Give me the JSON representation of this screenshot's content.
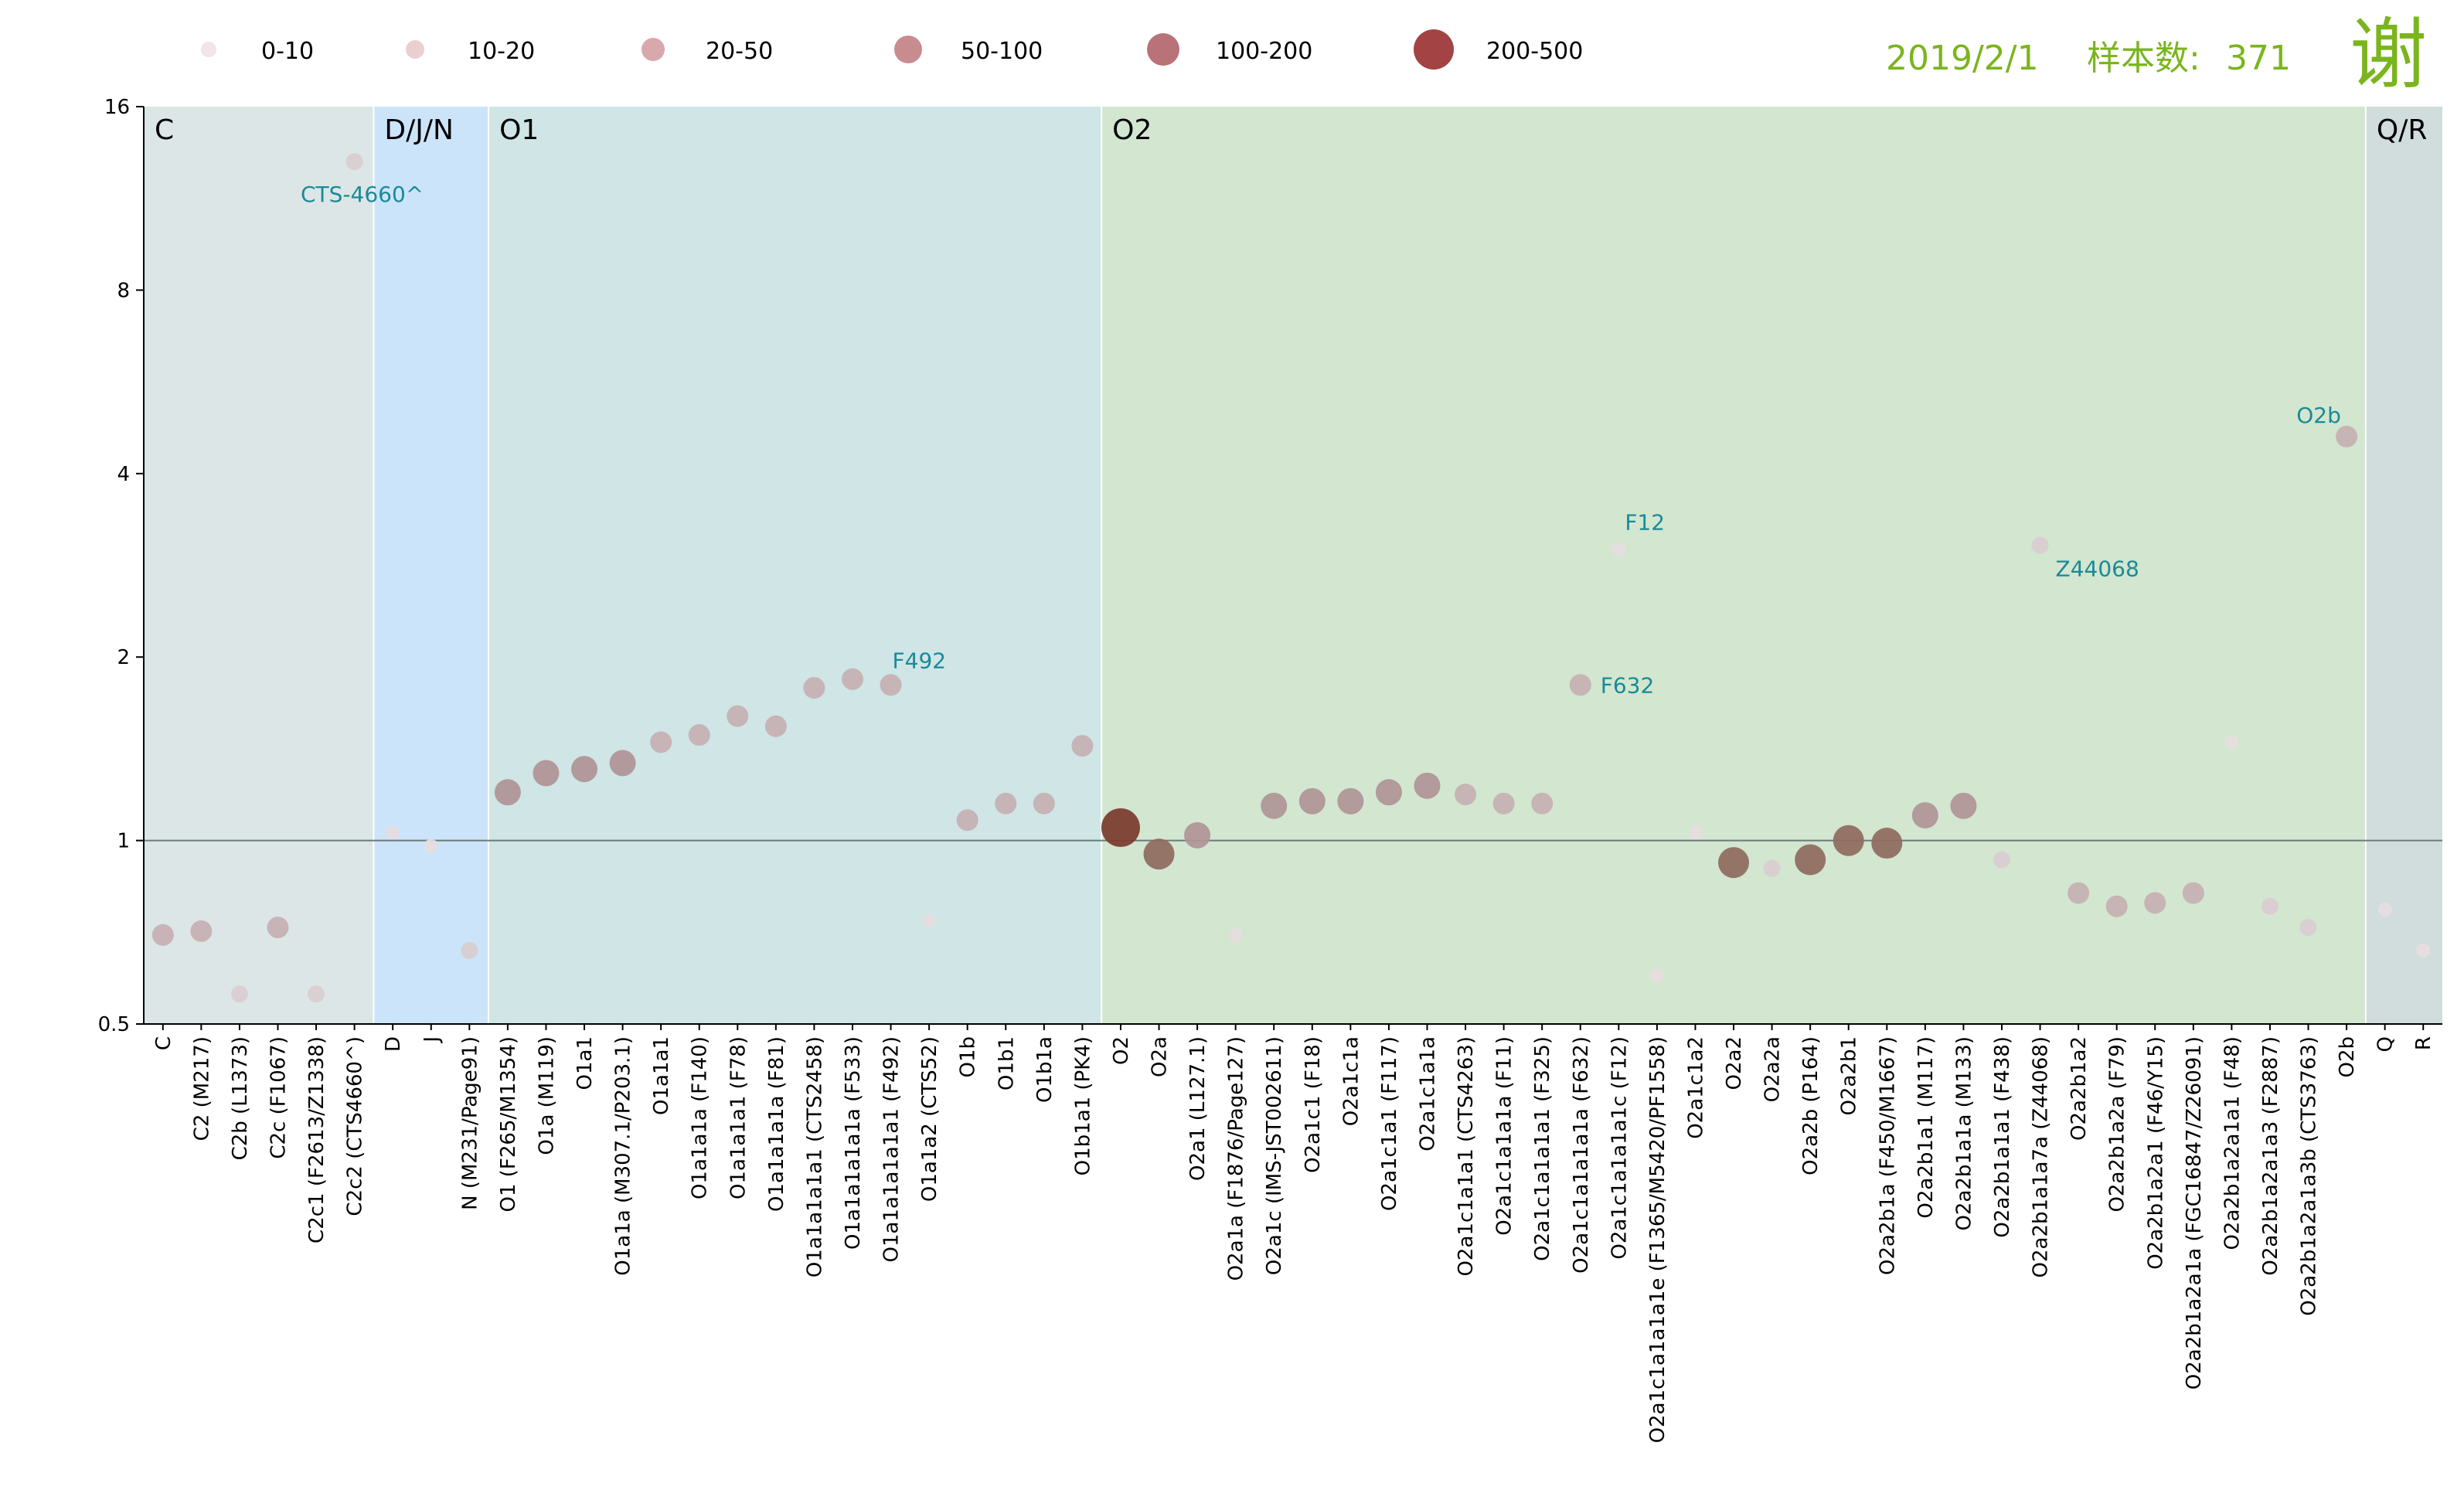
{
  "header": {
    "date": "2019/2/1",
    "sample_label": "样本数:",
    "sample_count": "371",
    "surname": "谢"
  },
  "legend": {
    "items": [
      {
        "label": "0-10",
        "color": "#f2e4e7"
      },
      {
        "label": "10-20",
        "color": "#eacfd1"
      },
      {
        "label": "20-50",
        "color": "#d9a8ac"
      },
      {
        "label": "50-100",
        "color": "#c88c8f"
      },
      {
        "label": "100-200",
        "color": "#b97277"
      },
      {
        "label": "200-500",
        "color": "#a34344"
      }
    ]
  },
  "regions": [
    {
      "label": "C",
      "from": "C",
      "to": "C2c2 (CTS4660^)",
      "color": "#dce6e6"
    },
    {
      "label": "D/J/N",
      "from": "D",
      "to": "N (M231/Page91)",
      "color": "#cce4fa"
    },
    {
      "label": "O1",
      "from": "O1 (F265/M1354)",
      "to": "O1b1a1 (PK4)",
      "color": "#cfe5e6"
    },
    {
      "label": "O2",
      "from": "O2",
      "to": "O2b",
      "color": "#d2e6d0"
    },
    {
      "label": "Q/R",
      "from": "Q",
      "to": "R",
      "color": "#d0dddc"
    }
  ],
  "chart_data": {
    "type": "scatter",
    "y_scale": "log2",
    "ylim": [
      0.5,
      16
    ],
    "yticks": [
      "0.5",
      "1",
      "2",
      "4",
      "8",
      "16"
    ],
    "reference_line": 1,
    "categories": [
      "C",
      "C2 (M217)",
      "C2b (L1373)",
      "C2c (F1067)",
      "C2c1 (F2613/Z1338)",
      "C2c2 (CTS4660^)",
      "D",
      "J",
      "N (M231/Page91)",
      "O1 (F265/M1354)",
      "O1a (M119)",
      "O1a1",
      "O1a1a (M307.1/P203.1)",
      "O1a1a1",
      "O1a1a1a (F140)",
      "O1a1a1a1 (F78)",
      "O1a1a1a1a (F81)",
      "O1a1a1a1a1 (CTS2458)",
      "O1a1a1a1a1a (F533)",
      "O1a1a1a1a1a1 (F492)",
      "O1a1a2 (CTS52)",
      "O1b",
      "O1b1",
      "O1b1a",
      "O1b1a1 (PK4)",
      "O2",
      "O2a",
      "O2a1 (L127.1)",
      "O2a1a (F1876/Page127)",
      "O2a1c (IMS-JST002611)",
      "O2a1c1 (F18)",
      "O2a1c1a",
      "O2a1c1a1 (F117)",
      "O2a1c1a1a",
      "O2a1c1a1a1 (CTS4263)",
      "O2a1c1a1a1a (F11)",
      "O2a1c1a1a1a1 (F325)",
      "O2a1c1a1a1a1a (F632)",
      "O2a1c1a1a1a1c (F12)",
      "O2a1c1a1a1a1e (F1365/M5420/PF1558)",
      "O2a1c1a2",
      "O2a2",
      "O2a2a",
      "O2a2b (P164)",
      "O2a2b1",
      "O2a2b1a (F450/M1667)",
      "O2a2b1a1 (M117)",
      "O2a2b1a1a (M133)",
      "O2a2b1a1a1 (F438)",
      "O2a2b1a1a7a (Z44068)",
      "O2a2b1a2",
      "O2a2b1a2a (F79)",
      "O2a2b1a2a1 (F46/Y15)",
      "O2a2b1a2a1a (FGC16847/Z26091)",
      "O2a2b1a2a1a1 (F48)",
      "O2a2b1a2a1a3 (F2887)",
      "O2a2b1a2a1a3b (CTS3763)",
      "O2b",
      "Q",
      "R"
    ],
    "values": [
      0.7,
      0.71,
      0.56,
      0.72,
      0.56,
      13.0,
      1.03,
      0.98,
      0.66,
      1.2,
      1.29,
      1.31,
      1.34,
      1.45,
      1.49,
      1.6,
      1.54,
      1.78,
      1.84,
      1.8,
      0.74,
      1.08,
      1.15,
      1.15,
      1.43,
      1.05,
      0.95,
      1.02,
      0.7,
      1.14,
      1.16,
      1.16,
      1.2,
      1.23,
      1.19,
      1.15,
      1.15,
      1.8,
      3.0,
      0.6,
      1.03,
      0.92,
      0.9,
      0.93,
      1.0,
      0.99,
      1.1,
      1.14,
      0.93,
      3.05,
      0.82,
      0.78,
      0.79,
      0.82,
      1.45,
      0.78,
      0.72,
      4.6,
      0.77,
      0.66
    ],
    "size_class": [
      2,
      2,
      1,
      2,
      1,
      1,
      0,
      0,
      1,
      3,
      3,
      3,
      3,
      2,
      2,
      2,
      2,
      2,
      2,
      2,
      0,
      2,
      2,
      2,
      2,
      5,
      4,
      3,
      0,
      3,
      3,
      3,
      3,
      3,
      2,
      2,
      2,
      2,
      0,
      0,
      0,
      4,
      1,
      4,
      4,
      4,
      3,
      3,
      1,
      1,
      2,
      2,
      2,
      2,
      0,
      1,
      1,
      2,
      0,
      0
    ],
    "annotations": [
      {
        "text": "CTS-4660^",
        "category": "C2c2 (CTS4660^)"
      },
      {
        "text": "F492",
        "category": "O1a1a1a1a1a1 (F492)"
      },
      {
        "text": "F632",
        "category": "O2a1c1a1a1a1a (F632)"
      },
      {
        "text": "F12",
        "category": "O2a1c1a1a1a1c (F12)"
      },
      {
        "text": "Z44068",
        "category": "O2a2b1a1a7a (Z44068)"
      },
      {
        "text": "O2b",
        "category": "O2b"
      }
    ],
    "grid": false
  }
}
